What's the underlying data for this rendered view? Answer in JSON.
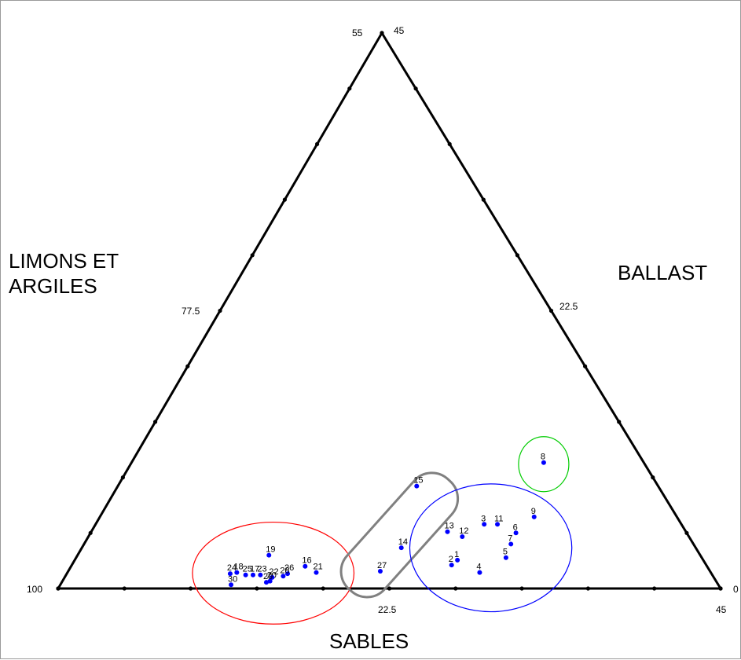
{
  "chart_data": {
    "type": "ternary-scatter",
    "axis_titles": {
      "left": [
        "LIMONS ET",
        "ARGILES"
      ],
      "right": "BALLAST",
      "bottom": "SABLES"
    },
    "left_axis": {
      "min": 55,
      "max": 100,
      "tick_labels": [
        "55",
        "77.5",
        "100"
      ]
    },
    "right_axis": {
      "min": 0,
      "max": 45,
      "tick_labels": [
        "45",
        "22.5",
        "0"
      ]
    },
    "bottom_axis": {
      "min": 0,
      "max": 45,
      "tick_labels": [
        "22.5",
        "45"
      ]
    },
    "ticks_per_side": 10,
    "points": [
      {
        "label": "1",
        "sand": 26.0,
        "ballast": 2.3
      },
      {
        "label": "2",
        "sand": 25.8,
        "ballast": 1.9
      },
      {
        "label": "3",
        "sand": 26.4,
        "ballast": 5.2
      },
      {
        "label": "4",
        "sand": 28.0,
        "ballast": 1.3
      },
      {
        "label": "5",
        "sand": 29.2,
        "ballast": 2.5
      },
      {
        "label": "6",
        "sand": 28.9,
        "ballast": 4.5
      },
      {
        "label": "7",
        "sand": 29.0,
        "ballast": 3.6
      },
      {
        "label": "8",
        "sand": 28.0,
        "ballast": 10.2
      },
      {
        "label": "9",
        "sand": 29.5,
        "ballast": 5.8
      },
      {
        "label": "11",
        "sand": 27.3,
        "ballast": 5.2
      },
      {
        "label": "12",
        "sand": 25.4,
        "ballast": 4.2
      },
      {
        "label": "13",
        "sand": 24.2,
        "ballast": 4.6
      },
      {
        "label": "14",
        "sand": 21.7,
        "ballast": 3.3
      },
      {
        "label": "15",
        "sand": 20.3,
        "ballast": 8.3
      },
      {
        "label": "16",
        "sand": 15.9,
        "ballast": 1.8
      },
      {
        "label": "17",
        "sand": 12.7,
        "ballast": 1.1
      },
      {
        "label": "18",
        "sand": 11.5,
        "ballast": 1.3
      },
      {
        "label": "19",
        "sand": 13.0,
        "ballast": 2.7
      },
      {
        "label": "20",
        "sand": 14.1,
        "ballast": 0.6
      },
      {
        "label": "21",
        "sand": 16.9,
        "ballast": 1.3
      },
      {
        "label": "22",
        "sand": 14.1,
        "ballast": 0.9
      },
      {
        "label": "23",
        "sand": 13.2,
        "ballast": 1.1
      },
      {
        "label": "24",
        "sand": 11.1,
        "ballast": 1.2
      },
      {
        "label": "25",
        "sand": 12.2,
        "ballast": 1.1
      },
      {
        "label": "26",
        "sand": 15.0,
        "ballast": 1.2
      },
      {
        "label": "27",
        "sand": 21.2,
        "ballast": 1.4
      },
      {
        "label": "28",
        "sand": 14.8,
        "ballast": 1.0
      },
      {
        "label": "29",
        "sand": 13.9,
        "ballast": 0.5
      },
      {
        "label": "30",
        "sand": 11.6,
        "ballast": 0.3
      }
    ],
    "groups": [
      {
        "color": "#ff0000",
        "members": [
          "16",
          "17",
          "18",
          "19",
          "20",
          "21",
          "22",
          "23",
          "24",
          "25",
          "26",
          "28",
          "29",
          "30"
        ]
      },
      {
        "color": "#808080",
        "members": [
          "14",
          "15",
          "27"
        ]
      },
      {
        "color": "#0000ff",
        "members": [
          "1",
          "2",
          "3",
          "4",
          "5",
          "6",
          "7",
          "9",
          "11",
          "12",
          "13"
        ]
      },
      {
        "color": "#00cc00",
        "members": [
          "8"
        ]
      }
    ],
    "colors": {
      "point": "#0000ff",
      "frame": "#000000",
      "label": "#000000"
    }
  }
}
